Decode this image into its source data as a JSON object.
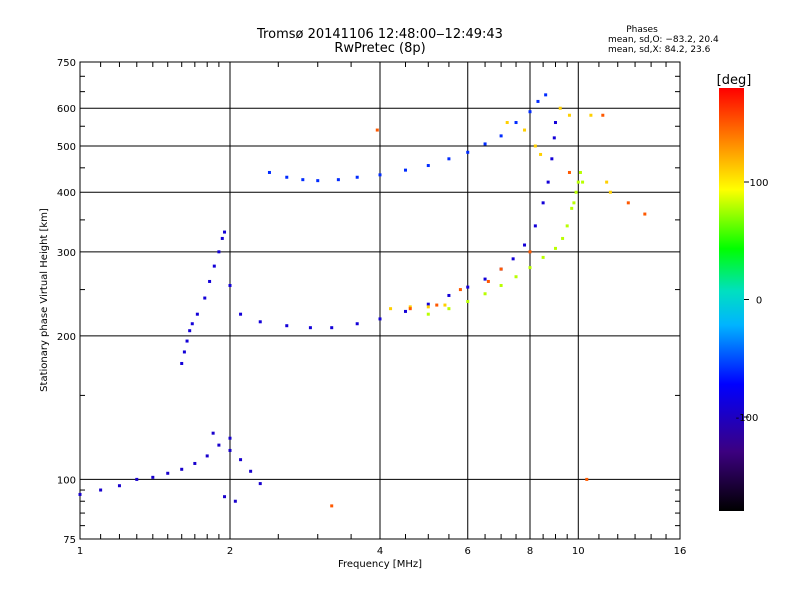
{
  "chart_data": {
    "type": "scatter",
    "title": "Tromsø 20141106 12:48:00‒12:49:43",
    "subtitle": "RwPretec (8p)",
    "xlabel": "Frequency [MHz]",
    "ylabel": "Stationary phase Virtual Height [km]",
    "x_scale": "log",
    "y_scale": "log",
    "xlim": [
      1,
      16
    ],
    "ylim": [
      75,
      750
    ],
    "x_ticks": [
      1,
      2,
      4,
      6,
      8,
      10,
      16
    ],
    "y_ticks": [
      75,
      100,
      200,
      300,
      400,
      500,
      600,
      750
    ],
    "grid": true,
    "phases_box": {
      "heading": "Phases",
      "line_o": "mean, sd,O: −83.2, 20.4",
      "line_x": "mean, sd,X:  84.2, 23.6"
    },
    "colorbar": {
      "label": "[deg]",
      "range": [
        -180,
        180
      ],
      "ticks": [
        100,
        0,
        -100
      ]
    },
    "series": [
      {
        "trace": "f-region-o",
        "phase": -90,
        "points": [
          [
            1.6,
            175
          ],
          [
            1.62,
            185
          ],
          [
            1.64,
            195
          ],
          [
            1.66,
            205
          ],
          [
            1.68,
            212
          ],
          [
            1.72,
            222
          ],
          [
            1.78,
            240
          ],
          [
            1.82,
            260
          ],
          [
            1.86,
            280
          ],
          [
            1.9,
            300
          ],
          [
            1.93,
            320
          ],
          [
            1.95,
            330
          ],
          [
            2.0,
            255
          ],
          [
            2.1,
            222
          ],
          [
            2.3,
            214
          ],
          [
            2.6,
            210
          ],
          [
            2.9,
            208
          ],
          [
            3.2,
            208
          ],
          [
            3.6,
            212
          ],
          [
            4.0,
            217
          ],
          [
            4.5,
            225
          ],
          [
            5.0,
            233
          ],
          [
            5.5,
            243
          ],
          [
            6.0,
            253
          ],
          [
            6.5,
            263
          ],
          [
            7.0,
            276
          ],
          [
            7.4,
            290
          ],
          [
            7.8,
            310
          ],
          [
            8.2,
            340
          ],
          [
            8.5,
            380
          ],
          [
            8.7,
            420
          ],
          [
            8.85,
            470
          ],
          [
            8.95,
            520
          ],
          [
            9.0,
            560
          ]
        ]
      },
      {
        "trace": "f-region-x",
        "phase": 80,
        "points": [
          [
            5.0,
            222
          ],
          [
            5.5,
            228
          ],
          [
            6.0,
            236
          ],
          [
            6.5,
            245
          ],
          [
            7.0,
            255
          ],
          [
            7.5,
            266
          ],
          [
            8.0,
            278
          ],
          [
            8.5,
            292
          ],
          [
            9.0,
            305
          ],
          [
            9.3,
            320
          ],
          [
            9.5,
            340
          ],
          [
            9.7,
            370
          ],
          [
            9.9,
            400
          ],
          [
            10.0,
            420
          ],
          [
            10.1,
            440
          ],
          [
            10.2,
            420
          ],
          [
            9.8,
            380
          ]
        ]
      },
      {
        "trace": "f-region-echo",
        "phase": -60,
        "points": [
          [
            2.4,
            440
          ],
          [
            2.6,
            430
          ],
          [
            2.8,
            425
          ],
          [
            3.0,
            423
          ],
          [
            3.3,
            425
          ],
          [
            3.6,
            430
          ],
          [
            4.0,
            435
          ],
          [
            4.5,
            445
          ],
          [
            5.0,
            455
          ],
          [
            5.5,
            470
          ],
          [
            6.0,
            485
          ],
          [
            6.5,
            505
          ],
          [
            7.0,
            525
          ],
          [
            7.5,
            560
          ],
          [
            8.0,
            590
          ],
          [
            8.3,
            620
          ],
          [
            8.6,
            640
          ]
        ]
      },
      {
        "trace": "e-region",
        "phase": -95,
        "points": [
          [
            1.0,
            93
          ],
          [
            1.1,
            95
          ],
          [
            1.2,
            97
          ],
          [
            1.3,
            100
          ],
          [
            1.4,
            101
          ],
          [
            1.5,
            103
          ],
          [
            1.6,
            105
          ],
          [
            1.7,
            108
          ],
          [
            1.8,
            112
          ],
          [
            1.9,
            118
          ],
          [
            2.0,
            115
          ],
          [
            2.1,
            110
          ],
          [
            2.2,
            104
          ],
          [
            2.3,
            98
          ],
          [
            1.95,
            92
          ],
          [
            2.05,
            90
          ],
          [
            1.85,
            125
          ],
          [
            2.0,
            122
          ]
        ]
      },
      {
        "trace": "x-mode-band",
        "phase": 110,
        "points": [
          [
            4.2,
            228
          ],
          [
            4.6,
            230
          ],
          [
            5.0,
            230
          ],
          [
            5.4,
            232
          ],
          [
            7.2,
            560
          ],
          [
            7.8,
            540
          ],
          [
            8.2,
            500
          ],
          [
            8.4,
            480
          ],
          [
            9.2,
            600
          ],
          [
            9.6,
            580
          ],
          [
            10.6,
            580
          ],
          [
            11.4,
            420
          ],
          [
            11.6,
            400
          ]
        ]
      },
      {
        "trace": "scattered-echoes",
        "phase": 150,
        "points": [
          [
            3.2,
            88
          ],
          [
            3.95,
            540
          ],
          [
            4.6,
            228
          ],
          [
            5.2,
            232
          ],
          [
            5.8,
            250
          ],
          [
            6.6,
            260
          ],
          [
            7.0,
            276
          ],
          [
            8.0,
            300
          ],
          [
            9.6,
            440
          ],
          [
            10.4,
            100
          ],
          [
            11.2,
            580
          ],
          [
            12.6,
            380
          ],
          [
            13.6,
            360
          ]
        ]
      }
    ]
  }
}
